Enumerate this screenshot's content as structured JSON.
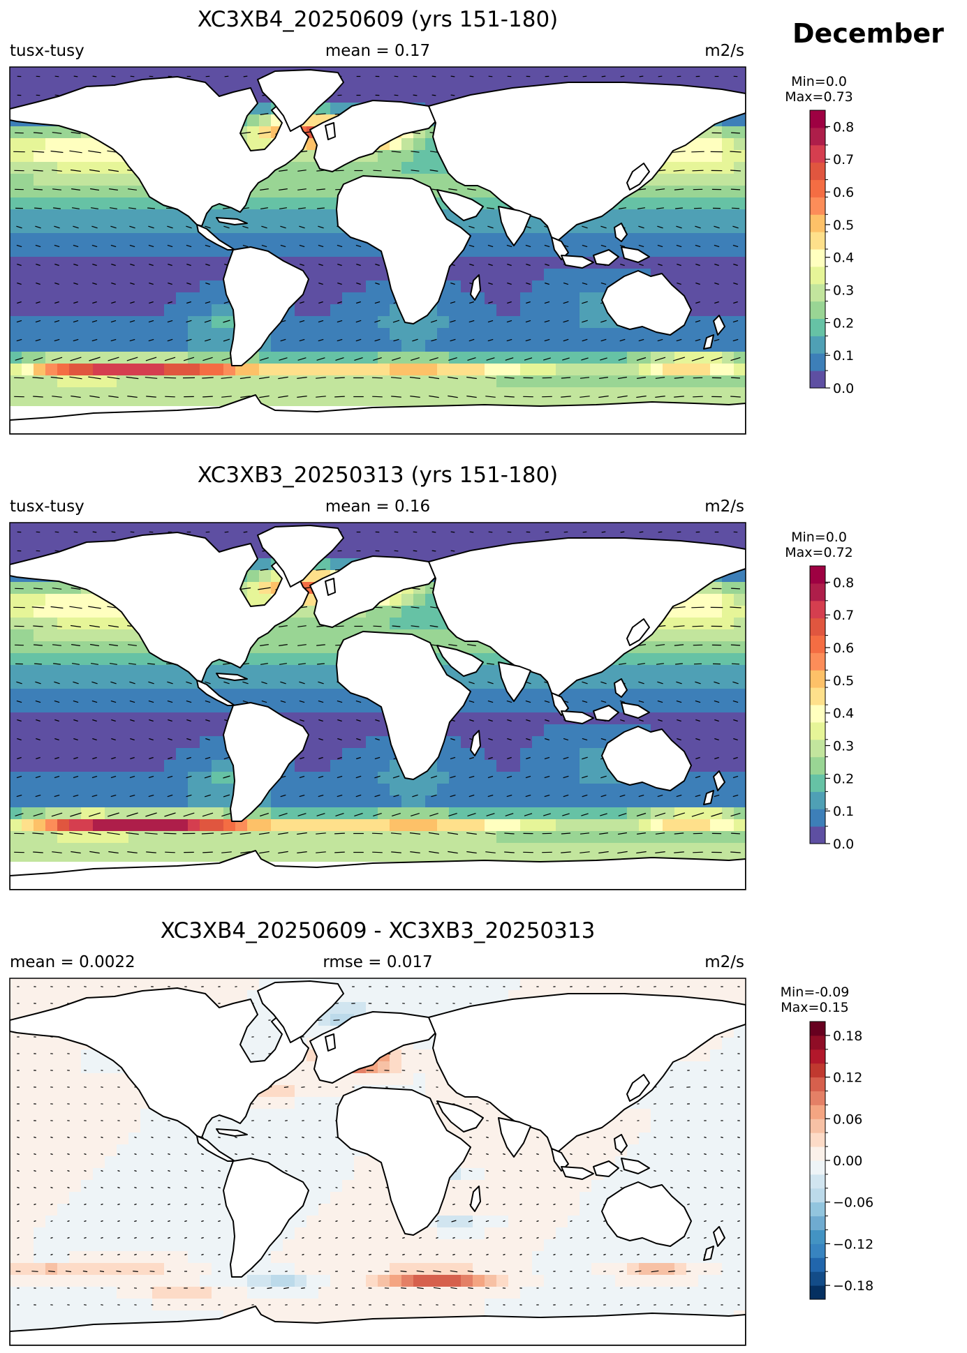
{
  "month": "December",
  "colors": {
    "land": "#ffffff",
    "coast": "#000000",
    "spectral": [
      "#5e4fa2",
      "#3d7fb8",
      "#4fa0b5",
      "#66c2a5",
      "#99d594",
      "#c2e59d",
      "#e6f598",
      "#ffffbf",
      "#fee08b",
      "#fdc168",
      "#fc8d59",
      "#f46d43",
      "#e0563f",
      "#d53e4f",
      "#ae1e4a",
      "#9e0142"
    ],
    "rdbu": [
      "#053061",
      "#134c88",
      "#2166ac",
      "#3884c0",
      "#4393c3",
      "#6fabd0",
      "#92c5de",
      "#bcdaea",
      "#d1e5f0",
      "#eef4f7",
      "#fbf1ea",
      "#fddbc7",
      "#f7c1a5",
      "#f4a582",
      "#e48066",
      "#d6604d",
      "#c0392f",
      "#b2182b",
      "#8f0d26",
      "#67001f"
    ]
  },
  "panels": [
    {
      "title": "XC3XB4_20250609 (yrs 151-180)",
      "left_label": "tusx-tusy",
      "center_label": "mean = 0.17",
      "right_label": "m2/s",
      "min_label": "Min=0.0",
      "max_label": "Max=0.73",
      "colorbar": {
        "palette": "spectral",
        "range": [
          0.0,
          0.85
        ],
        "ticks": [
          0.0,
          0.1,
          0.2,
          0.3,
          0.4,
          0.5,
          0.6,
          0.7,
          0.8
        ],
        "tick_labels": [
          "0.0",
          "0.1",
          "0.2",
          "0.3",
          "0.4",
          "0.5",
          "0.6",
          "0.7",
          "0.8"
        ]
      }
    },
    {
      "title": "XC3XB3_20250313 (yrs 151-180)",
      "left_label": "tusx-tusy",
      "center_label": "mean = 0.16",
      "right_label": "m2/s",
      "min_label": "Min=0.0",
      "max_label": "Max=0.72",
      "colorbar": {
        "palette": "spectral",
        "range": [
          0.0,
          0.85
        ],
        "ticks": [
          0.0,
          0.1,
          0.2,
          0.3,
          0.4,
          0.5,
          0.6,
          0.7,
          0.8
        ],
        "tick_labels": [
          "0.0",
          "0.1",
          "0.2",
          "0.3",
          "0.4",
          "0.5",
          "0.6",
          "0.7",
          "0.8"
        ]
      }
    },
    {
      "title": "XC3XB4_20250609 - XC3XB3_20250313",
      "left_label": "mean = 0.0022",
      "center_label": "rmse = 0.017",
      "right_label": "m2/s",
      "min_label": "Min=-0.09",
      "max_label": "Max=0.15",
      "colorbar": {
        "palette": "rdbu",
        "range": [
          -0.2,
          0.2
        ],
        "ticks": [
          -0.18,
          -0.12,
          -0.06,
          0.0,
          0.06,
          0.12,
          0.18
        ],
        "tick_labels": [
          "−0.18",
          "−0.12",
          "−0.06",
          "0.00",
          "0.06",
          "0.12",
          "0.18"
        ]
      }
    }
  ],
  "chart_data": [
    {
      "type": "heatmap",
      "title": "XC3XB4_20250609 (yrs 151-180)",
      "variable": "tusx-tusy",
      "units": "m2/s",
      "mean": 0.17,
      "min": 0.0,
      "max": 0.73,
      "colorbar_range": [
        0.0,
        0.85
      ],
      "features": [
        {
          "region": "North Atlantic (south of Greenland to Europe)",
          "value": 0.73
        },
        {
          "region": "Southern Ocean south of South America",
          "value": 0.65
        },
        {
          "region": "Southern Ocean south of Australia",
          "value": 0.6
        },
        {
          "region": "North Pacific storm track",
          "value": 0.45
        },
        {
          "region": "Tropical and subtropical oceans",
          "value": 0.1
        },
        {
          "region": "Arctic / sea-ice regions",
          "value": 0.0
        }
      ]
    },
    {
      "type": "heatmap",
      "title": "XC3XB3_20250313 (yrs 151-180)",
      "variable": "tusx-tusy",
      "units": "m2/s",
      "mean": 0.16,
      "min": 0.0,
      "max": 0.72,
      "colorbar_range": [
        0.0,
        0.85
      ],
      "features": [
        {
          "region": "North Atlantic (south of Greenland to Europe)",
          "value": 0.65
        },
        {
          "region": "Southern Ocean south of South America",
          "value": 0.72
        },
        {
          "region": "Southern Ocean south of Australia",
          "value": 0.6
        },
        {
          "region": "North Pacific storm track",
          "value": 0.45
        },
        {
          "region": "Tropical and subtropical oceans",
          "value": 0.1
        },
        {
          "region": "Arctic / sea-ice regions",
          "value": 0.0
        }
      ]
    },
    {
      "type": "heatmap",
      "title": "XC3XB4_20250609 - XC3XB3_20250313",
      "units": "m2/s",
      "mean": 0.0022,
      "rmse": 0.017,
      "min": -0.09,
      "max": 0.15,
      "colorbar_range": [
        -0.2,
        0.2
      ],
      "features": [
        {
          "region": "North Atlantic off Europe",
          "value": 0.15
        },
        {
          "region": "Southern Indian Ocean",
          "value": 0.12
        },
        {
          "region": "Southern Ocean south of Australia",
          "value": 0.06
        },
        {
          "region": "Southern Ocean south of South America",
          "value": -0.09
        },
        {
          "region": "Labrador Sea / subpolar North Atlantic",
          "value": -0.06
        },
        {
          "region": "Most open ocean",
          "value": 0.0
        }
      ]
    }
  ]
}
